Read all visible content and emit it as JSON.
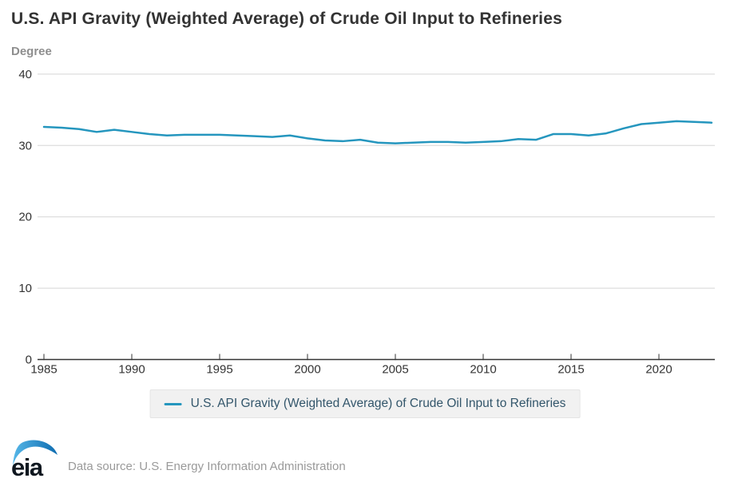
{
  "header": {
    "title": "U.S. API Gravity (Weighted Average) of Crude Oil Input to Refineries",
    "unit_label": "Degree"
  },
  "chart_data": {
    "type": "line",
    "x": [
      1985,
      1986,
      1987,
      1988,
      1989,
      1990,
      1991,
      1992,
      1993,
      1994,
      1995,
      1996,
      1997,
      1998,
      1999,
      2000,
      2001,
      2002,
      2003,
      2004,
      2005,
      2006,
      2007,
      2008,
      2009,
      2010,
      2011,
      2012,
      2013,
      2014,
      2015,
      2016,
      2017,
      2018,
      2019,
      2020,
      2021,
      2022,
      2023
    ],
    "series": [
      {
        "name": "U.S. API Gravity (Weighted Average) of Crude Oil Input to Refineries",
        "color": "#2596be",
        "values": [
          32.6,
          32.5,
          32.3,
          31.9,
          32.2,
          31.9,
          31.6,
          31.4,
          31.5,
          31.5,
          31.5,
          31.4,
          31.3,
          31.2,
          31.4,
          31.0,
          30.7,
          30.6,
          30.8,
          30.4,
          30.3,
          30.4,
          30.5,
          30.5,
          30.4,
          30.5,
          30.6,
          30.9,
          30.8,
          31.6,
          31.6,
          31.4,
          31.7,
          32.4,
          33.0,
          33.2,
          33.4,
          33.3,
          33.2
        ]
      }
    ],
    "title": "U.S. API Gravity (Weighted Average) of Crude Oil Input to Refineries",
    "xlabel": "",
    "ylabel": "Degree",
    "ylim": [
      0,
      40
    ],
    "yticks": [
      0,
      10,
      20,
      30,
      40
    ],
    "xticks": [
      1985,
      1990,
      1995,
      2000,
      2005,
      2010,
      2015,
      2020
    ],
    "grid": "horizontal",
    "legend_position": "bottom"
  },
  "legend": {
    "label": "U.S. API Gravity (Weighted Average) of Crude Oil Input to Refineries"
  },
  "footer": {
    "logo_text": "eia",
    "source": "Data source: U.S. Energy Information Administration"
  },
  "colors": {
    "line": "#2596be",
    "title_text": "#333333",
    "unit_text": "#8e8e8e",
    "axis": "#333333",
    "gridline": "#d5d5d5",
    "legend_background": "#f1f1f1",
    "legend_text": "#33566b",
    "source_text": "#9a9a9a"
  }
}
